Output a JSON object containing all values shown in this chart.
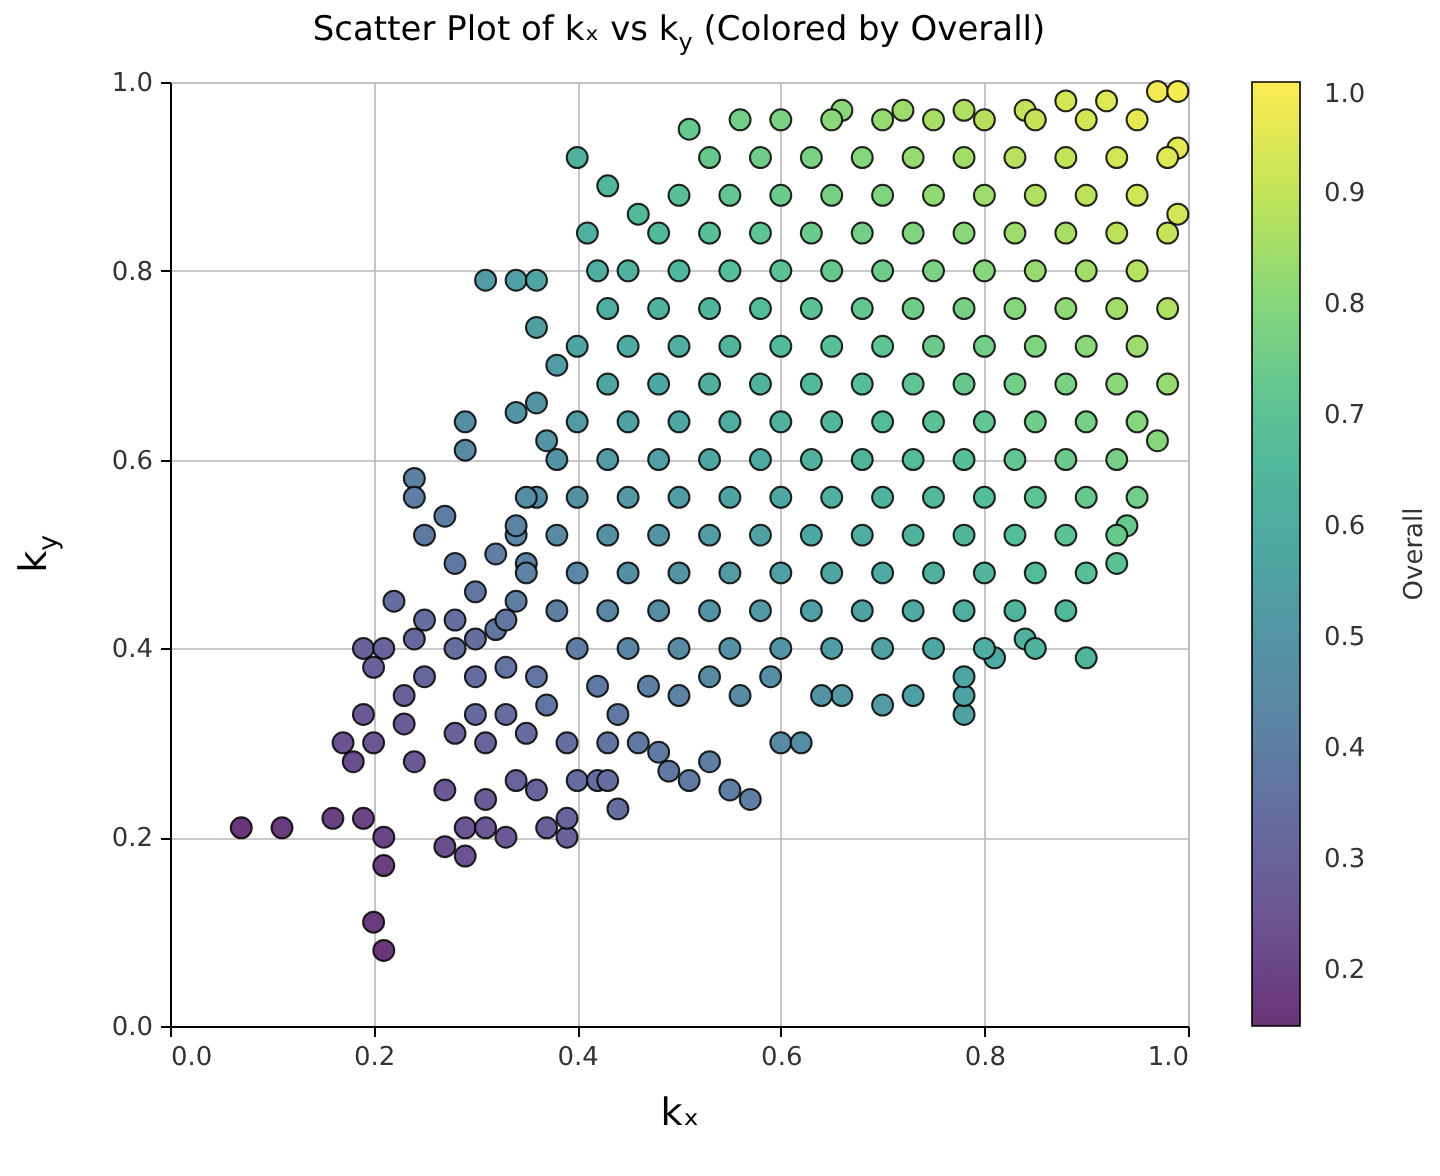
{
  "chart_data": {
    "type": "scatter",
    "title": "Scatter Plot of kₓ vs k$_{y}$ (Colored by Overall)",
    "xlabel": "kₓ",
    "ylabel": "k$_{y}$",
    "clabel": "Overall",
    "xlim": [
      0.0,
      1.0
    ],
    "ylim": [
      0.0,
      1.0
    ],
    "xticks": [
      {
        "value": 0,
        "label": "0.0"
      },
      0.2,
      0.4,
      0.6,
      0.8,
      {
        "value": 1,
        "label": "1.0"
      }
    ],
    "yticks": [
      {
        "value": 0,
        "label": "0.0"
      },
      0.2,
      0.4,
      0.6,
      0.8,
      {
        "value": 1,
        "label": "1.0"
      }
    ],
    "clim": [
      0.15,
      1.0
    ],
    "cticks": [
      0.2,
      0.3,
      0.4,
      0.5,
      0.6,
      0.7,
      0.8,
      0.9,
      {
        "value": 1,
        "label": "1.0"
      }
    ],
    "grid": true,
    "marker": "circle",
    "x": [
      0.07,
      0.11,
      0.16,
      0.19,
      0.21,
      0.21,
      0.2,
      0.21,
      0.27,
      0.29,
      0.29,
      0.31,
      0.33,
      0.31,
      0.34,
      0.36,
      0.37,
      0.39,
      0.39,
      0.27,
      0.24,
      0.17,
      0.18,
      0.19,
      0.23,
      0.2,
      0.19,
      0.21,
      0.22,
      0.2,
      0.23,
      0.25,
      0.24,
      0.25,
      0.24,
      0.24,
      0.29,
      0.29,
      0.27,
      0.25,
      0.28,
      0.28,
      0.3,
      0.31,
      0.3,
      0.33,
      0.35,
      0.37,
      0.39,
      0.4,
      0.42,
      0.43,
      0.44,
      0.43,
      0.46,
      0.48,
      0.49,
      0.51,
      0.53,
      0.55,
      0.57,
      0.6,
      0.62,
      0.33,
      0.36,
      0.28,
      0.32,
      0.34,
      0.35,
      0.34,
      0.36,
      0.34,
      0.37,
      0.42,
      0.44,
      0.47,
      0.5,
      0.53,
      0.56,
      0.59,
      0.3,
      0.32,
      0.33,
      0.3,
      0.34,
      0.28,
      0.9,
      0.78,
      0.78,
      0.78,
      0.81,
      0.84,
      0.73,
      0.7,
      0.66,
      0.64,
      0.93,
      0.94,
      0.4,
      0.43,
      0.46,
      0.41,
      0.42,
      0.31,
      0.34,
      0.36,
      0.36,
      0.38,
      0.36,
      0.51,
      0.56,
      0.66,
      0.72,
      0.78,
      0.84,
      0.88,
      0.92,
      0.97,
      0.99,
      0.99,
      0.99,
      0.97,
      0.4,
      0.45,
      0.5,
      0.55,
      0.6,
      0.65,
      0.7,
      0.75,
      0.8,
      0.85,
      0.38,
      0.43,
      0.48,
      0.53,
      0.58,
      0.63,
      0.68,
      0.73,
      0.78,
      0.83,
      0.88,
      0.35,
      0.4,
      0.45,
      0.5,
      0.55,
      0.6,
      0.65,
      0.7,
      0.75,
      0.8,
      0.85,
      0.9,
      0.38,
      0.43,
      0.48,
      0.53,
      0.58,
      0.63,
      0.68,
      0.73,
      0.78,
      0.83,
      0.88,
      0.93,
      0.35,
      0.4,
      0.45,
      0.5,
      0.55,
      0.6,
      0.65,
      0.7,
      0.75,
      0.8,
      0.85,
      0.9,
      0.95,
      0.38,
      0.43,
      0.48,
      0.53,
      0.58,
      0.63,
      0.68,
      0.73,
      0.78,
      0.83,
      0.88,
      0.93,
      0.4,
      0.45,
      0.5,
      0.55,
      0.6,
      0.65,
      0.7,
      0.75,
      0.8,
      0.85,
      0.9,
      0.95,
      0.43,
      0.48,
      0.53,
      0.58,
      0.63,
      0.68,
      0.73,
      0.78,
      0.83,
      0.88,
      0.93,
      0.98,
      0.4,
      0.45,
      0.5,
      0.55,
      0.6,
      0.65,
      0.7,
      0.75,
      0.8,
      0.85,
      0.9,
      0.95,
      0.43,
      0.48,
      0.53,
      0.58,
      0.63,
      0.68,
      0.73,
      0.78,
      0.83,
      0.88,
      0.93,
      0.98,
      0.45,
      0.5,
      0.55,
      0.6,
      0.65,
      0.7,
      0.75,
      0.8,
      0.85,
      0.9,
      0.95,
      0.48,
      0.53,
      0.58,
      0.63,
      0.68,
      0.73,
      0.78,
      0.83,
      0.88,
      0.93,
      0.98,
      0.5,
      0.55,
      0.6,
      0.65,
      0.7,
      0.75,
      0.8,
      0.85,
      0.9,
      0.95,
      0.53,
      0.58,
      0.63,
      0.68,
      0.73,
      0.78,
      0.83,
      0.88,
      0.93,
      0.98,
      0.6,
      0.65,
      0.7,
      0.75,
      0.8,
      0.85,
      0.9,
      0.95
    ],
    "values": [
      0.21,
      0.21,
      0.22,
      0.22,
      0.2,
      0.17,
      0.11,
      0.08,
      0.19,
      0.18,
      0.21,
      0.21,
      0.2,
      0.24,
      0.26,
      0.25,
      0.21,
      0.2,
      0.22,
      0.25,
      0.28,
      0.3,
      0.28,
      0.33,
      0.32,
      0.3,
      0.4,
      0.4,
      0.45,
      0.38,
      0.35,
      0.37,
      0.41,
      0.43,
      0.58,
      0.56,
      0.64,
      0.61,
      0.54,
      0.52,
      0.49,
      0.31,
      0.33,
      0.3,
      0.37,
      0.33,
      0.31,
      0.34,
      0.3,
      0.26,
      0.26,
      0.26,
      0.23,
      0.3,
      0.3,
      0.29,
      0.27,
      0.26,
      0.28,
      0.25,
      0.24,
      0.3,
      0.3,
      0.38,
      0.37,
      0.4,
      0.42,
      0.45,
      0.49,
      0.52,
      0.56,
      0.65,
      0.62,
      0.36,
      0.33,
      0.36,
      0.35,
      0.37,
      0.35,
      0.37,
      0.46,
      0.5,
      0.43,
      0.41,
      0.53,
      0.43,
      0.39,
      0.33,
      0.35,
      0.37,
      0.39,
      0.41,
      0.35,
      0.34,
      0.35,
      0.35,
      0.49,
      0.53,
      0.92,
      0.89,
      0.86,
      0.84,
      0.8,
      0.79,
      0.79,
      0.79,
      0.74,
      0.7,
      0.66,
      0.95,
      0.96,
      0.97,
      0.97,
      0.97,
      0.97,
      0.98,
      0.98,
      0.99,
      0.99,
      0.93,
      0.86,
      0.62,
      0.4,
      0.4,
      0.4,
      0.4,
      0.4,
      0.4,
      0.4,
      0.4,
      0.4,
      0.4,
      0.44,
      0.44,
      0.44,
      0.44,
      0.44,
      0.44,
      0.44,
      0.44,
      0.44,
      0.44,
      0.44,
      0.48,
      0.48,
      0.48,
      0.48,
      0.48,
      0.48,
      0.48,
      0.48,
      0.48,
      0.48,
      0.48,
      0.48,
      0.52,
      0.52,
      0.52,
      0.52,
      0.52,
      0.52,
      0.52,
      0.52,
      0.52,
      0.52,
      0.52,
      0.52,
      0.56,
      0.56,
      0.56,
      0.56,
      0.56,
      0.56,
      0.56,
      0.56,
      0.56,
      0.56,
      0.56,
      0.56,
      0.56,
      0.6,
      0.6,
      0.6,
      0.6,
      0.6,
      0.6,
      0.6,
      0.6,
      0.6,
      0.6,
      0.6,
      0.6,
      0.64,
      0.64,
      0.64,
      0.64,
      0.64,
      0.64,
      0.64,
      0.64,
      0.64,
      0.64,
      0.64,
      0.64,
      0.68,
      0.68,
      0.68,
      0.68,
      0.68,
      0.68,
      0.68,
      0.68,
      0.68,
      0.68,
      0.68,
      0.68,
      0.72,
      0.72,
      0.72,
      0.72,
      0.72,
      0.72,
      0.72,
      0.72,
      0.72,
      0.72,
      0.72,
      0.72,
      0.76,
      0.76,
      0.76,
      0.76,
      0.76,
      0.76,
      0.76,
      0.76,
      0.76,
      0.76,
      0.76,
      0.76,
      0.8,
      0.8,
      0.8,
      0.8,
      0.8,
      0.8,
      0.8,
      0.8,
      0.8,
      0.8,
      0.8,
      0.84,
      0.84,
      0.84,
      0.84,
      0.84,
      0.84,
      0.84,
      0.84,
      0.84,
      0.84,
      0.84,
      0.88,
      0.88,
      0.88,
      0.88,
      0.88,
      0.88,
      0.88,
      0.88,
      0.88,
      0.88,
      0.92,
      0.92,
      0.92,
      0.92,
      0.92,
      0.92,
      0.92,
      0.92,
      0.92,
      0.92,
      0.96,
      0.96,
      0.96,
      0.96,
      0.96,
      0.96,
      0.96,
      0.96
    ],
    "cvalues": [
      0.16,
      0.17,
      0.19,
      0.2,
      0.2,
      0.18,
      0.17,
      0.16,
      0.23,
      0.24,
      0.25,
      0.26,
      0.26,
      0.27,
      0.3,
      0.3,
      0.29,
      0.29,
      0.31,
      0.26,
      0.26,
      0.24,
      0.23,
      0.26,
      0.27,
      0.25,
      0.29,
      0.3,
      0.34,
      0.29,
      0.29,
      0.31,
      0.32,
      0.34,
      0.41,
      0.4,
      0.46,
      0.45,
      0.4,
      0.38,
      0.38,
      0.29,
      0.32,
      0.3,
      0.33,
      0.33,
      0.33,
      0.36,
      0.34,
      0.33,
      0.34,
      0.34,
      0.34,
      0.36,
      0.38,
      0.39,
      0.38,
      0.38,
      0.4,
      0.4,
      0.41,
      0.45,
      0.46,
      0.36,
      0.36,
      0.34,
      0.37,
      0.4,
      0.42,
      0.43,
      0.46,
      0.5,
      0.5,
      0.38,
      0.38,
      0.41,
      0.42,
      0.45,
      0.45,
      0.47,
      0.37,
      0.4,
      0.37,
      0.34,
      0.42,
      0.34,
      0.64,
      0.55,
      0.56,
      0.57,
      0.59,
      0.62,
      0.54,
      0.52,
      0.51,
      0.49,
      0.7,
      0.73,
      0.62,
      0.65,
      0.66,
      0.61,
      0.6,
      0.52,
      0.54,
      0.56,
      0.54,
      0.53,
      0.5,
      0.73,
      0.76,
      0.81,
      0.84,
      0.87,
      0.9,
      0.93,
      0.95,
      0.98,
      0.99,
      0.96,
      0.93,
      0.8,
      0.4,
      0.43,
      0.45,
      0.48,
      0.5,
      0.53,
      0.55,
      0.58,
      0.6,
      0.63,
      0.41,
      0.44,
      0.46,
      0.49,
      0.51,
      0.54,
      0.56,
      0.59,
      0.61,
      0.64,
      0.66,
      0.42,
      0.44,
      0.47,
      0.49,
      0.52,
      0.54,
      0.57,
      0.59,
      0.62,
      0.64,
      0.67,
      0.69,
      0.45,
      0.48,
      0.5,
      0.53,
      0.55,
      0.58,
      0.6,
      0.63,
      0.65,
      0.68,
      0.7,
      0.73,
      0.46,
      0.48,
      0.51,
      0.53,
      0.56,
      0.58,
      0.61,
      0.63,
      0.66,
      0.68,
      0.71,
      0.73,
      0.76,
      0.49,
      0.52,
      0.54,
      0.57,
      0.59,
      0.62,
      0.64,
      0.67,
      0.69,
      0.72,
      0.74,
      0.77,
      0.52,
      0.55,
      0.57,
      0.6,
      0.62,
      0.65,
      0.67,
      0.7,
      0.72,
      0.75,
      0.77,
      0.8,
      0.56,
      0.58,
      0.61,
      0.63,
      0.66,
      0.68,
      0.71,
      0.73,
      0.76,
      0.78,
      0.81,
      0.83,
      0.56,
      0.59,
      0.61,
      0.64,
      0.66,
      0.69,
      0.71,
      0.74,
      0.76,
      0.79,
      0.81,
      0.84,
      0.6,
      0.62,
      0.65,
      0.67,
      0.7,
      0.72,
      0.75,
      0.77,
      0.8,
      0.82,
      0.85,
      0.87,
      0.63,
      0.65,
      0.68,
      0.7,
      0.73,
      0.75,
      0.78,
      0.8,
      0.83,
      0.85,
      0.88,
      0.66,
      0.69,
      0.71,
      0.74,
      0.76,
      0.79,
      0.81,
      0.84,
      0.86,
      0.89,
      0.91,
      0.69,
      0.72,
      0.74,
      0.77,
      0.79,
      0.82,
      0.84,
      0.87,
      0.89,
      0.92,
      0.73,
      0.75,
      0.78,
      0.8,
      0.83,
      0.85,
      0.88,
      0.9,
      0.93,
      0.95,
      0.78,
      0.81,
      0.83,
      0.86,
      0.88,
      0.91,
      0.93,
      0.96
    ]
  }
}
